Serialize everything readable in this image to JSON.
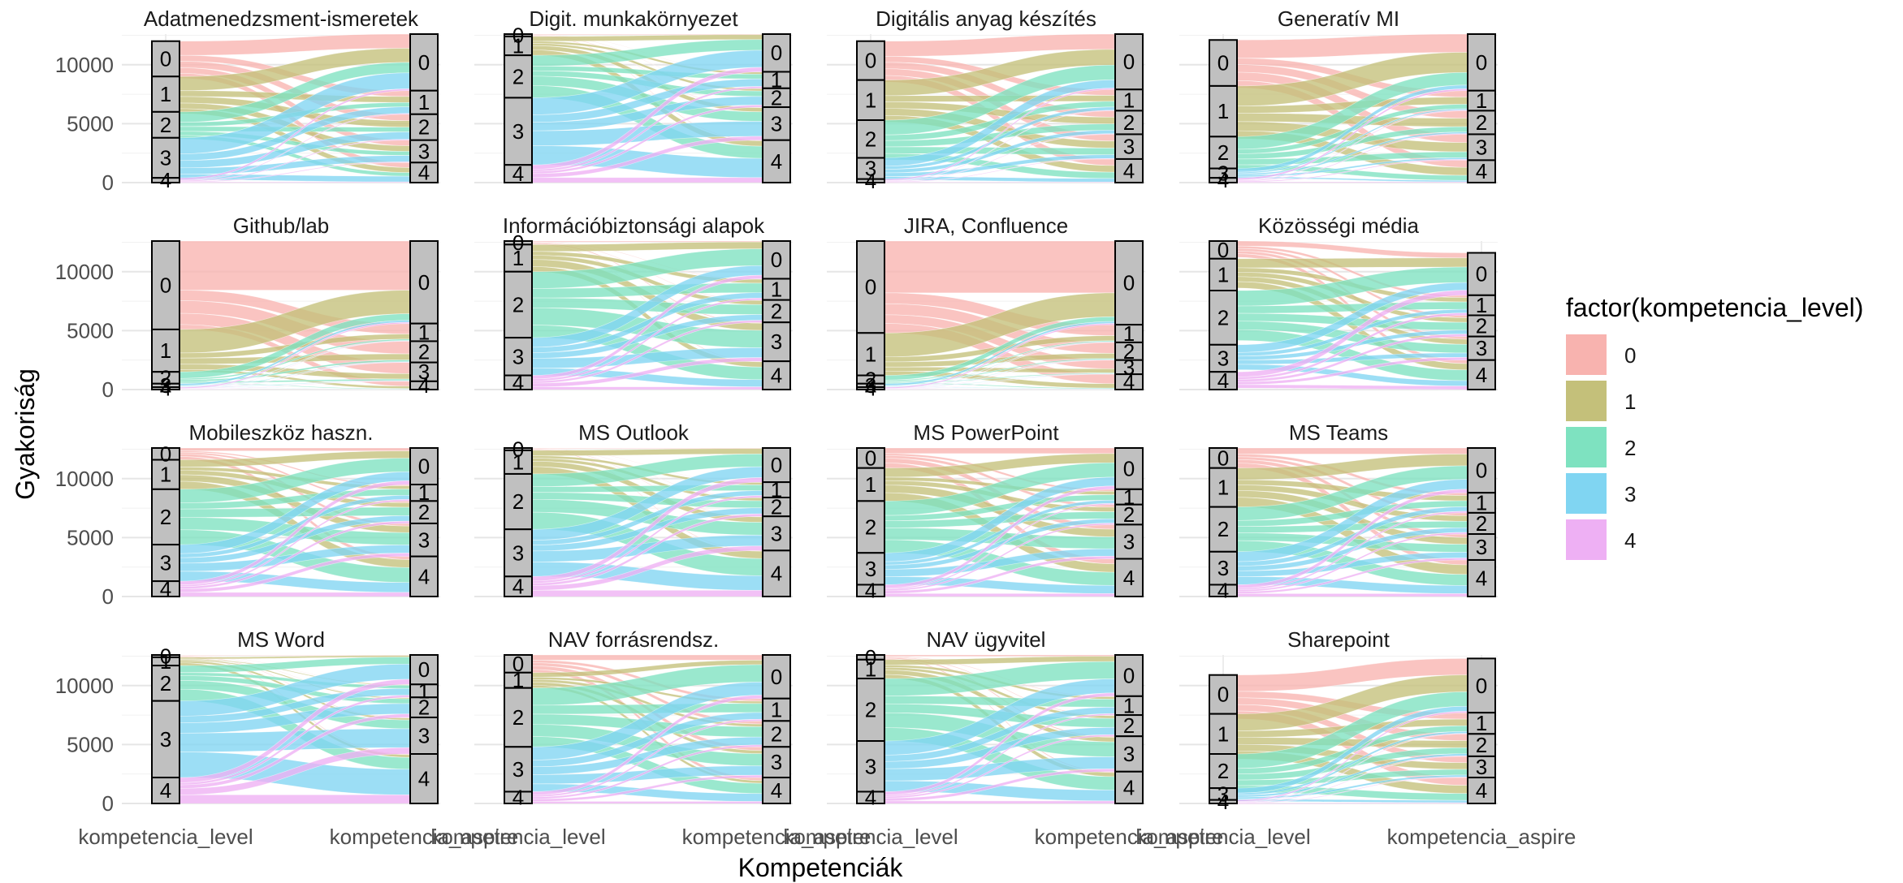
{
  "chart_data": {
    "type": "alluvial",
    "xlabel": "Kompetenciák",
    "ylabel": "Gyakoriság",
    "x": [
      "kompetencia_level",
      "kompetencia_aspire"
    ],
    "ylim": [
      0,
      12600
    ],
    "yticks": [
      0,
      5000,
      10000
    ],
    "grid": true,
    "legend": {
      "title": "factor(kompetencia_level)",
      "position": "right",
      "entries": [
        "0",
        "1",
        "2",
        "3",
        "4"
      ],
      "colors": [
        "#F8B3AF",
        "#C4C07A",
        "#7EE2C0",
        "#80D5F2",
        "#EEB0F4"
      ]
    },
    "panels": [
      {
        "title": "Adatmenedzsment-ismeretek",
        "level": [
          3000,
          3000,
          2200,
          3400,
          400
        ],
        "aspire": [
          4800,
          2000,
          2200,
          1900,
          1700
        ]
      },
      {
        "title": "Digit. munkakörnyezet",
        "level": [
          200,
          1600,
          3600,
          5700,
          1500
        ],
        "aspire": [
          3200,
          1400,
          1600,
          2800,
          3600
        ]
      },
      {
        "title": "Digitális anyag készítés",
        "level": [
          3300,
          3400,
          3200,
          1800,
          300
        ],
        "aspire": [
          4700,
          1800,
          2000,
          2100,
          2000
        ]
      },
      {
        "title": "Generatív MI",
        "level": [
          3900,
          4300,
          2700,
          800,
          400
        ],
        "aspire": [
          4800,
          1700,
          2000,
          2200,
          1900
        ]
      },
      {
        "title": "Github/lab",
        "level": [
          7500,
          3600,
          1000,
          300,
          200
        ],
        "aspire": [
          7000,
          1500,
          1800,
          1600,
          700
        ]
      },
      {
        "title": "Információbiztonsági alapok",
        "level": [
          300,
          2300,
          5600,
          3200,
          1200
        ],
        "aspire": [
          3200,
          1800,
          1900,
          3300,
          2400
        ]
      },
      {
        "title": "JIRA, Confluence",
        "level": [
          7800,
          3600,
          700,
          300,
          200
        ],
        "aspire": [
          7100,
          1500,
          1500,
          1200,
          1300
        ]
      },
      {
        "title": "Közösségi média",
        "level": [
          1500,
          2700,
          4600,
          2300,
          1500
        ],
        "aspire": [
          3600,
          1700,
          1800,
          2000,
          2500
        ]
      },
      {
        "title": "Mobileszköz haszn.",
        "level": [
          1000,
          2500,
          4700,
          3100,
          1300
        ],
        "aspire": [
          3100,
          1400,
          1900,
          2800,
          3400
        ]
      },
      {
        "title": "MS Outlook",
        "level": [
          200,
          2000,
          4700,
          4000,
          1700
        ],
        "aspire": [
          2900,
          1300,
          1600,
          2900,
          3900
        ]
      },
      {
        "title": "MS PowerPoint",
        "level": [
          1700,
          2800,
          4400,
          2700,
          1000
        ],
        "aspire": [
          3500,
          1300,
          1700,
          2900,
          3200
        ]
      },
      {
        "title": "MS Teams",
        "level": [
          1700,
          3300,
          3800,
          2800,
          1000
        ],
        "aspire": [
          3800,
          1700,
          1800,
          2200,
          3100
        ]
      },
      {
        "title": "MS Word",
        "level": [
          200,
          700,
          3000,
          6500,
          2200
        ],
        "aspire": [
          2500,
          1100,
          1700,
          3100,
          4200
        ]
      },
      {
        "title": "NAV forrásrendsz.",
        "level": [
          1500,
          1300,
          5000,
          3800,
          1000
        ],
        "aspire": [
          3700,
          1900,
          2200,
          2600,
          2200
        ]
      },
      {
        "title": "NAV ügyvitel",
        "level": [
          400,
          1600,
          5300,
          4300,
          1000
        ],
        "aspire": [
          3500,
          1600,
          1800,
          3000,
          2700
        ]
      },
      {
        "title": "Sharepoint",
        "level": [
          3300,
          3400,
          2900,
          1000,
          300
        ],
        "aspire": [
          4600,
          1800,
          1900,
          1800,
          2200
        ]
      }
    ]
  }
}
